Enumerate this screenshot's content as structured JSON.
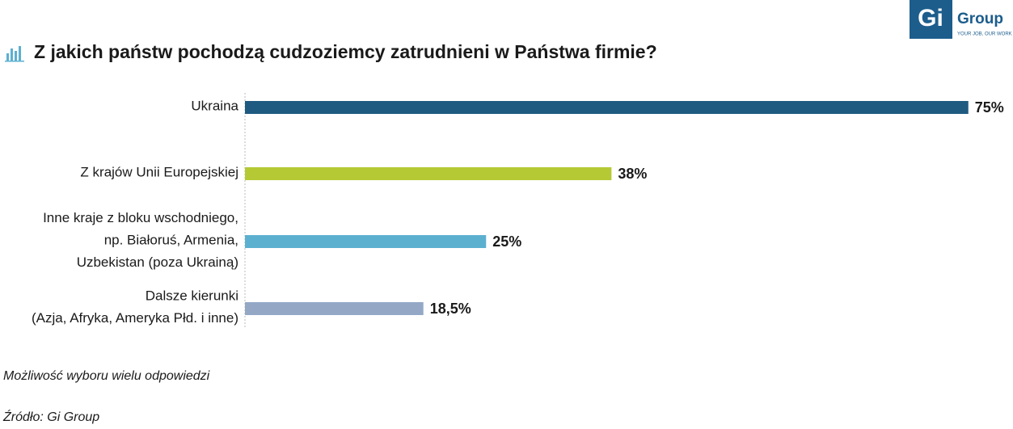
{
  "logo": {
    "mark": "Gi",
    "name": "Group",
    "tagline": "YOUR JOB, OUR WORK"
  },
  "chart_data": {
    "type": "bar",
    "orientation": "horizontal",
    "title": "Z jakich państw pochodzą cudzoziemcy zatrudnieni w Państwa firmie?",
    "categories": [
      [
        "Ukraina"
      ],
      [
        "Z krajów Unii Europejskiej"
      ],
      [
        "Inne kraje z bloku wschodniego,",
        "np. Białoruś, Armenia,",
        "Uzbekistan (poza Ukrainą)"
      ],
      [
        "Dalsze kierunki",
        "(Azja, Afryka, Ameryka Płd. i inne)"
      ]
    ],
    "values": [
      75,
      38,
      25,
      18.5
    ],
    "value_labels": [
      "75%",
      "38%",
      "25%",
      "18,5%"
    ],
    "colors": [
      "#1f5a80",
      "#b5c935",
      "#5cb0cf",
      "#94a8c6"
    ]
  },
  "notes": [
    "Możliwość wyboru wielu odpowiedzi",
    "Źródło: Gi Group"
  ]
}
